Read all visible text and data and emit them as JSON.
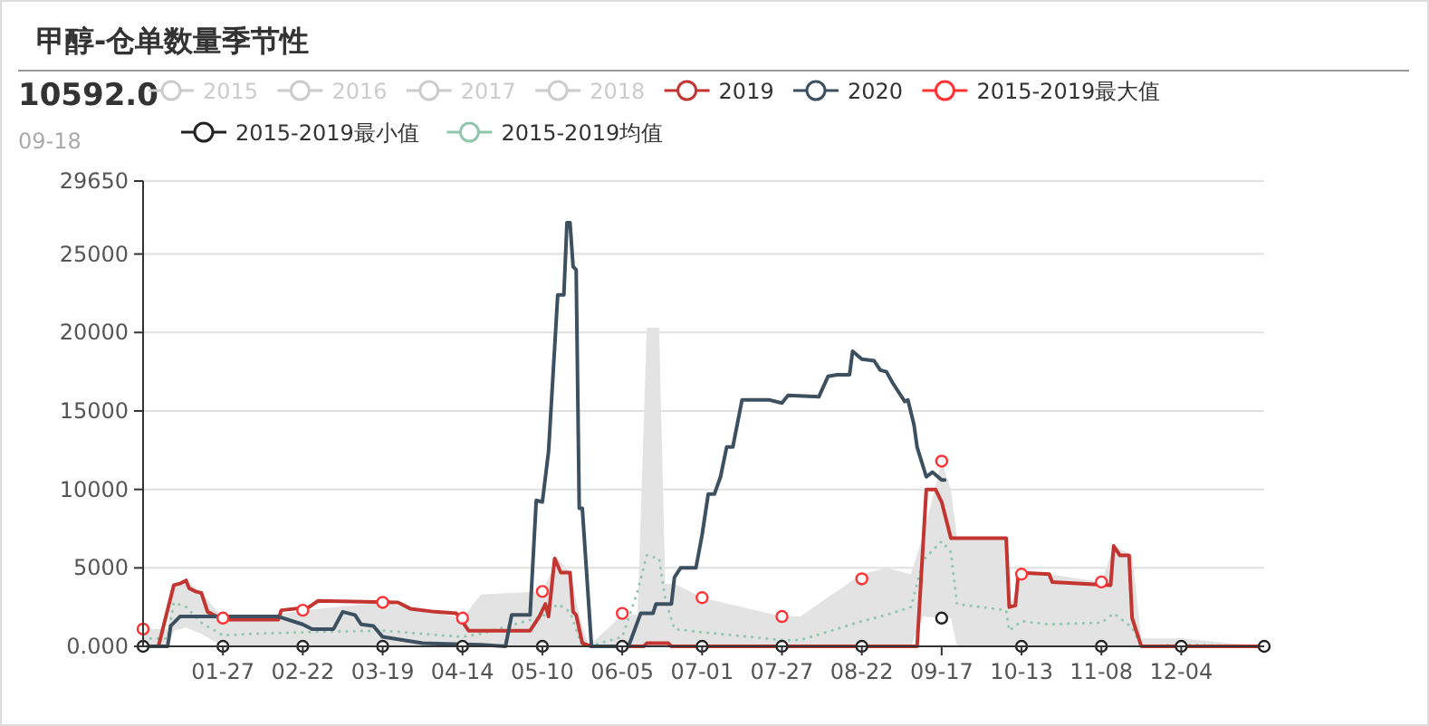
{
  "chart_data": {
    "type": "line",
    "title": "甲醇-仓单数量季节性",
    "annotations": [
      "10592.0",
      "09-18"
    ],
    "xlim": [
      "--01-01",
      "--12-31"
    ],
    "xticks": [
      {
        "value": "--01-27",
        "label": "01-27"
      },
      {
        "value": "--02-22",
        "label": "02-22"
      },
      {
        "value": "--03-19",
        "label": "03-19"
      },
      {
        "value": "--04-14",
        "label": "04-14"
      },
      {
        "value": "--05-10",
        "label": "05-10"
      },
      {
        "value": "--06-05",
        "label": "06-05"
      },
      {
        "value": "--07-01",
        "label": "07-01"
      },
      {
        "value": "--07-27",
        "label": "07-27"
      },
      {
        "value": "--08-22",
        "label": "08-22"
      },
      {
        "value": "--09-17",
        "label": "09-17"
      },
      {
        "value": "--10-13",
        "label": "10-13"
      },
      {
        "value": "--11-08",
        "label": "11-08"
      },
      {
        "value": "--12-04",
        "label": "12-04"
      }
    ],
    "ylim": [
      0,
      29650
    ],
    "yticks": [
      {
        "value": 0,
        "label": "0.000"
      },
      5000,
      10000,
      15000,
      20000,
      25000,
      29650
    ],
    "grid": "y",
    "legend": "top",
    "marker": "circle",
    "series": [
      {
        "name": "2015",
        "color": "#cccccc"
      },
      {
        "name": "2016",
        "color": "#cccccc"
      },
      {
        "name": "2017",
        "color": "#cccccc"
      },
      {
        "name": "2018",
        "color": "#cccccc"
      },
      {
        "name": "2019",
        "color": "#c23531",
        "marker": "none",
        "x": [
          "--01-01",
          "--01-06",
          "--01-11",
          "--01-13",
          "--01-15",
          "--01-16",
          "--01-18",
          "--01-20",
          "--01-22",
          "--01-27",
          "--02-14",
          "--02-15",
          "--02-24",
          "--02-27",
          "--03-24",
          "--03-28",
          "--04-05",
          "--04-12",
          "--04-16",
          "--05-06",
          "--05-09",
          "--05-11",
          "--05-12",
          "--05-14",
          "--05-16",
          "--05-19",
          "--05-20",
          "--05-21",
          "--05-23",
          "--05-26",
          "--06-12",
          "--06-13",
          "--06-20",
          "--06-21",
          "--09-09",
          "--09-12",
          "--09-15",
          "--09-17",
          "--09-20",
          "--10-08",
          "--10-09",
          "--10-11",
          "--10-12",
          "--10-22",
          "--10-23",
          "--11-11",
          "--11-12",
          "--11-14",
          "--11-17",
          "--11-18",
          "--11-21",
          "--12-31"
        ],
        "values": [
          0,
          0,
          3900,
          4000,
          4200,
          3700,
          3500,
          3400,
          2200,
          1700,
          1700,
          2300,
          2500,
          2900,
          2800,
          2400,
          2200,
          2100,
          1000,
          1000,
          1900,
          2700,
          1900,
          5600,
          4700,
          4700,
          2200,
          2000,
          200,
          0,
          0,
          200,
          200,
          0,
          0,
          10000,
          10000,
          9200,
          6900,
          6900,
          2500,
          2600,
          4700,
          4600,
          4100,
          3900,
          6400,
          5800,
          5800,
          1800,
          0,
          0
        ]
      },
      {
        "name": "2020",
        "color": "#3d5060",
        "marker": "none",
        "x": [
          "--01-01",
          "--01-09",
          "--01-10",
          "--01-13",
          "--02-14",
          "--02-22",
          "--02-25",
          "--03-03",
          "--03-06",
          "--03-10",
          "--03-12",
          "--03-16",
          "--03-19",
          "--04-01",
          "--04-20",
          "--04-28",
          "--04-30",
          "--05-06",
          "--05-08",
          "--05-10",
          "--05-12",
          "--05-15",
          "--05-17",
          "--05-18",
          "--05-19",
          "--05-20",
          "--05-21",
          "--05-22",
          "--05-23",
          "--05-26",
          "--06-07",
          "--06-08",
          "--06-11",
          "--06-15",
          "--06-16",
          "--06-21",
          "--06-22",
          "--06-24",
          "--06-29",
          "--07-01",
          "--07-03",
          "--07-05",
          "--07-07",
          "--07-09",
          "--07-11",
          "--07-14",
          "--07-23",
          "--07-27",
          "--07-29",
          "--08-08",
          "--08-11",
          "--08-14",
          "--08-18",
          "--08-19",
          "--08-22",
          "--08-26",
          "--08-28",
          "--08-30",
          "--09-01",
          "--09-05",
          "--09-06",
          "--09-08",
          "--09-09",
          "--09-12",
          "--09-14",
          "--09-17",
          "--09-18"
        ],
        "values": [
          0,
          0,
          1300,
          1900,
          1900,
          1400,
          1100,
          1100,
          2200,
          2000,
          1400,
          1300,
          600,
          200,
          100,
          0,
          2000,
          2000,
          9300,
          9200,
          12400,
          22400,
          22400,
          27000,
          27000,
          24200,
          24000,
          8800,
          8800,
          0,
          0,
          500,
          2100,
          2100,
          2700,
          2700,
          4400,
          5000,
          5000,
          7100,
          9700,
          9700,
          10800,
          12700,
          12700,
          15700,
          15700,
          15500,
          16000,
          15900,
          17200,
          17300,
          17300,
          18800,
          18300,
          18200,
          17600,
          17500,
          16800,
          15600,
          15700,
          14100,
          12700,
          10800,
          11100,
          10600,
          10600
        ]
      },
      {
        "name": "2015-2019最大值",
        "type": "scatter",
        "color": "#ff3333",
        "x": [
          "--01-01",
          "--01-27",
          "--02-22",
          "--03-19",
          "--04-14",
          "--05-10",
          "--06-05",
          "--07-01",
          "--07-27",
          "--08-22",
          "--09-17",
          "--10-13",
          "--11-08"
        ],
        "values": [
          1100,
          1800,
          2300,
          2800,
          1800,
          3500,
          2100,
          3100,
          1900,
          4300,
          11800,
          4600,
          4100
        ]
      },
      {
        "name": "2015-2019最小值",
        "type": "scatter",
        "color": "#222222",
        "x": [
          "--01-01",
          "--01-27",
          "--02-22",
          "--03-19",
          "--04-14",
          "--05-10",
          "--06-05",
          "--07-01",
          "--07-27",
          "--08-22",
          "--09-17",
          "--10-13",
          "--11-08",
          "--12-04",
          "--12-31"
        ],
        "values": [
          0,
          0,
          0,
          0,
          0,
          0,
          0,
          0,
          0,
          0,
          1800,
          0,
          0,
          0,
          0
        ]
      },
      {
        "name": "2015-2019均值",
        "color": "#91c7ae",
        "line_style": "dotted",
        "marker": "none",
        "x": [
          "--01-01",
          "--01-09",
          "--01-11",
          "--01-15",
          "--01-20",
          "--01-27",
          "--02-06",
          "--02-22",
          "--03-19",
          "--04-14",
          "--04-20",
          "--05-10",
          "--05-15",
          "--05-19",
          "--05-22",
          "--05-25",
          "--06-05",
          "--06-10",
          "--06-13",
          "--06-17",
          "--06-19",
          "--06-22",
          "--07-01",
          "--07-27",
          "--08-02",
          "--08-22",
          "--08-30",
          "--09-07",
          "--09-11",
          "--09-17",
          "--09-20",
          "--09-22",
          "--10-08",
          "--10-09",
          "--10-13",
          "--10-22",
          "--11-08",
          "--11-12",
          "--11-18",
          "--11-21",
          "--12-04",
          "--12-31"
        ],
        "values": [
          500,
          500,
          2800,
          2500,
          1500,
          700,
          800,
          900,
          1000,
          600,
          800,
          1900,
          2700,
          2200,
          500,
          0,
          600,
          3500,
          5800,
          5600,
          3000,
          1100,
          900,
          400,
          400,
          1600,
          2000,
          2500,
          5500,
          6700,
          6000,
          2700,
          2300,
          1000,
          1600,
          1400,
          1500,
          2100,
          1200,
          0,
          100,
          0
        ],
        "lower": [
          0,
          0,
          1000,
          1200,
          800,
          0,
          0,
          0,
          0,
          0,
          0,
          0,
          0,
          0,
          0,
          0,
          0,
          0,
          0,
          0,
          0,
          0,
          0,
          0,
          0,
          0,
          0,
          0,
          1900,
          1800,
          1800,
          0,
          0,
          0,
          0,
          0,
          0,
          0,
          0,
          0,
          0,
          0
        ],
        "upper": [
          1100,
          1100,
          4000,
          4200,
          3400,
          1800,
          1800,
          2300,
          2800,
          1800,
          3300,
          3500,
          5600,
          4700,
          2000,
          0,
          2000,
          2000,
          20300,
          20300,
          4000,
          4000,
          3100,
          1900,
          1900,
          4600,
          5000,
          4600,
          7100,
          11800,
          10000,
          6900,
          6900,
          2500,
          4600,
          4600,
          4100,
          6400,
          5800,
          500,
          500,
          0
        ]
      }
    ]
  }
}
